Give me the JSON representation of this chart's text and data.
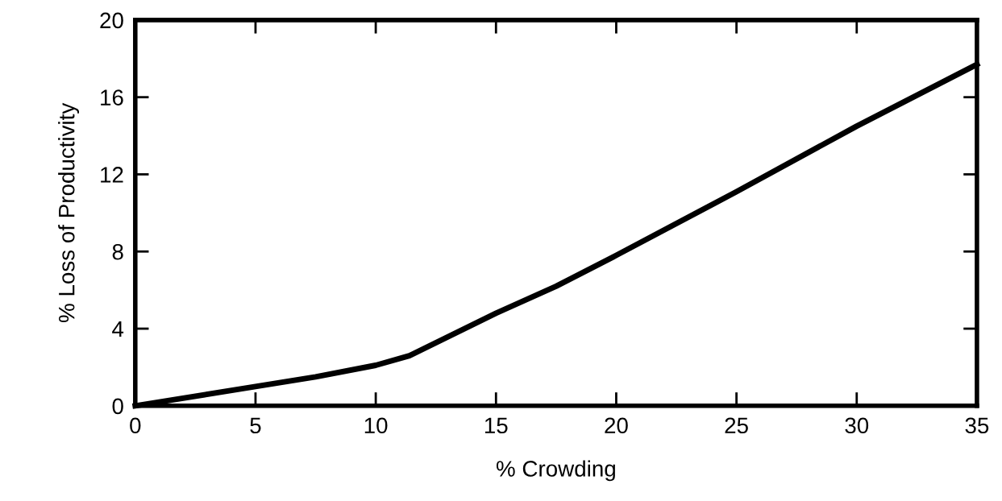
{
  "chart_data": {
    "type": "line",
    "xlabel": "% Crowding",
    "ylabel": "% Loss of Productivity",
    "x": [
      0,
      5,
      7.5,
      10,
      11.4,
      15,
      17.5,
      20,
      25,
      30,
      35
    ],
    "series": [
      {
        "color": "#000000",
        "values": [
          0,
          1.0,
          1.5,
          2.1,
          2.6,
          4.8,
          6.2,
          7.8,
          11.1,
          14.5,
          17.7
        ]
      }
    ],
    "xlim": [
      0,
      35
    ],
    "ylim": [
      0,
      20
    ],
    "xticks": [
      0,
      5,
      10,
      15,
      20,
      25,
      30,
      35
    ],
    "yticks": [
      0,
      4,
      8,
      12,
      16,
      20
    ],
    "grid": false,
    "marker": "none",
    "line_style": "solid"
  }
}
